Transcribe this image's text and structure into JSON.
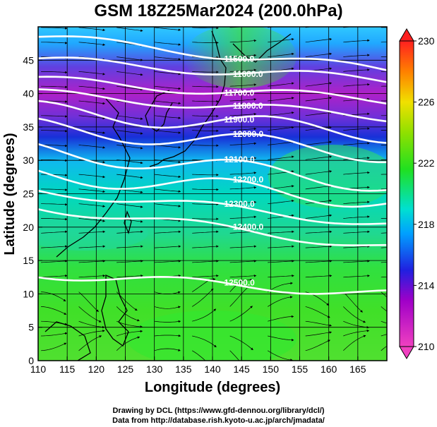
{
  "title": "GSM 18Z25Mar2024 (200.0hPa)",
  "x_axis": {
    "title": "Longitude (degrees)",
    "ticks": [
      "110",
      "115",
      "120",
      "125",
      "130",
      "135",
      "140",
      "145",
      "150",
      "155",
      "160",
      "165"
    ],
    "range": [
      110,
      170
    ]
  },
  "y_axis": {
    "title": "Latitude  (degrees)",
    "ticks": [
      "0",
      "5",
      "10",
      "15",
      "20",
      "25",
      "30",
      "35",
      "40",
      "45"
    ],
    "range": [
      0,
      50
    ]
  },
  "colorbar": {
    "labels": [
      "230",
      "226",
      "222",
      "218",
      "214",
      "210"
    ],
    "range": [
      210,
      230
    ],
    "colors": [
      "#d02090",
      "#a000c8",
      "#2020e0",
      "#00a0ff",
      "#00e0d0",
      "#20e020",
      "#90e000",
      "#f0e000",
      "#ff8000",
      "#ff2020"
    ]
  },
  "contours": {
    "color": "#ffffff",
    "levels": [
      {
        "label": "11500.0",
        "lat_west": 48.5,
        "lat_east": 43.5
      },
      {
        "label": "11600.0",
        "lat_west": 45.0,
        "lat_east": 42.0
      },
      {
        "label": "11700.0",
        "lat_west": 42.0,
        "lat_east": 39.0
      },
      {
        "label": "11800.0",
        "lat_west": 40.0,
        "lat_east": 36.5
      },
      {
        "label": "11900.0",
        "lat_west": 37.5,
        "lat_east": 34.0
      },
      {
        "label": "12000.0",
        "lat_west": 35.0,
        "lat_east": 31.0
      },
      {
        "label": "12100.0",
        "lat_west": 31.5,
        "lat_east": 26.5
      },
      {
        "label": "12200.0",
        "lat_west": 28.0,
        "lat_east": 24.0
      },
      {
        "label": "12300.0",
        "lat_west": 25.5,
        "lat_east": 20.5
      },
      {
        "label": "12400.0",
        "lat_west": 23.0,
        "lat_east": 17.0
      },
      {
        "label": "12500.0",
        "lat_west": 13.0,
        "lat_east": 10.0
      }
    ]
  },
  "credits": {
    "line1": "Drawing by DCL (https://www.gfd-dennou.org/library/dcl/)",
    "line2": "Data from http://database.rish.kyoto-u.ac.jp/arch/jmadata/"
  }
}
